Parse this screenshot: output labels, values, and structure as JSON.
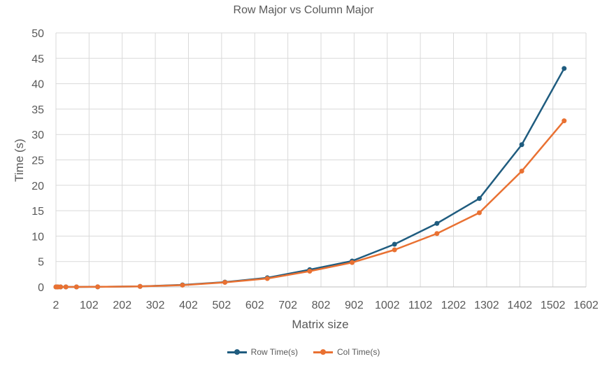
{
  "chart_data": {
    "type": "line",
    "title": "Row Major vs Column Major",
    "xlabel": "Matrix size",
    "ylabel": "Time (s)",
    "xlim": [
      2,
      1602
    ],
    "ylim": [
      0,
      50
    ],
    "xticks": [
      2,
      102,
      202,
      302,
      402,
      502,
      602,
      702,
      802,
      902,
      1002,
      1102,
      1202,
      1302,
      1402,
      1502,
      1602
    ],
    "yticks": [
      0,
      5,
      10,
      15,
      20,
      25,
      30,
      35,
      40,
      45,
      50
    ],
    "x": [
      2,
      4,
      8,
      16,
      32,
      64,
      128,
      256,
      384,
      512,
      640,
      768,
      896,
      1024,
      1152,
      1280,
      1408,
      1536
    ],
    "series": [
      {
        "name": "Row Time(s)",
        "color": "#1f5c7f",
        "values": [
          0,
          0,
          0,
          0,
          0,
          0,
          0.02,
          0.1,
          0.4,
          0.95,
          1.8,
          3.4,
          5.1,
          8.4,
          12.5,
          17.4,
          28.0,
          43.0
        ]
      },
      {
        "name": "Col Time(s)",
        "color": "#e97132",
        "values": [
          0,
          0,
          0,
          0,
          0,
          0,
          0.02,
          0.1,
          0.35,
          0.9,
          1.65,
          3.1,
          4.8,
          7.3,
          10.5,
          14.6,
          22.8,
          32.7
        ]
      }
    ],
    "grid": true,
    "legend_position": "bottom"
  }
}
